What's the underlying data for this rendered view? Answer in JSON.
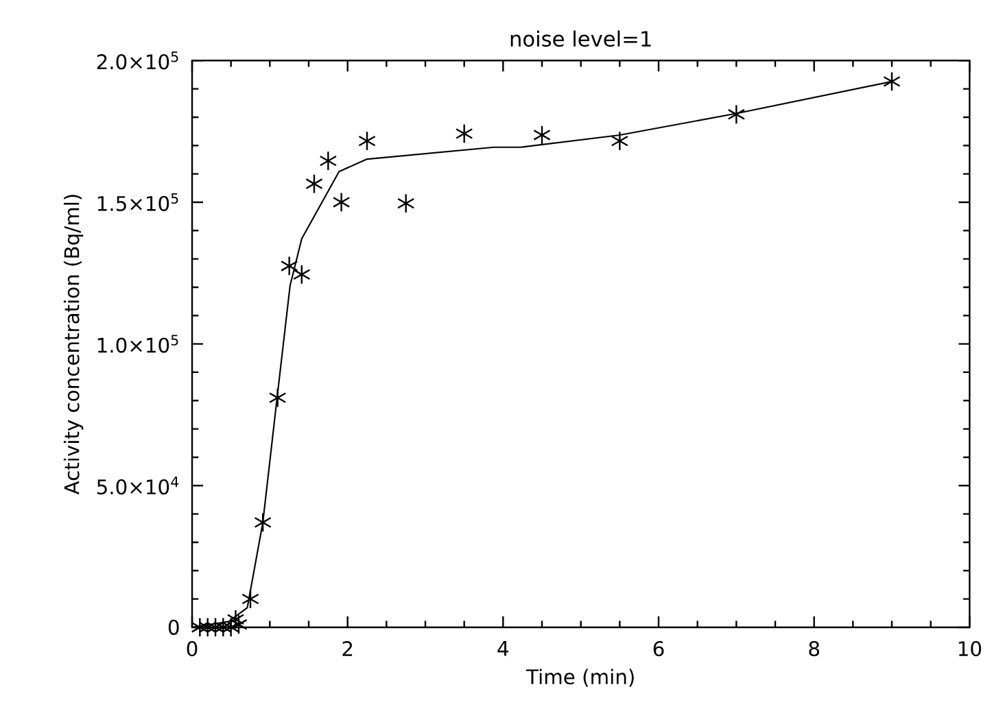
{
  "chart_data": {
    "type": "scatter",
    "title": "noise level=1",
    "xlabel": "Time (min)",
    "ylabel": "Activity concentration (Bq/ml)",
    "xlim": [
      0,
      10
    ],
    "xticks": [
      0,
      2,
      4,
      6,
      8,
      10
    ],
    "ylim": [
      0,
      200000
    ],
    "yticks": [
      {
        "value": 0,
        "label": "0"
      },
      {
        "value": 50000,
        "label": "5.0×10$^{4}$"
      },
      {
        "value": 100000,
        "label": "1.0×10$^{5}$"
      },
      {
        "value": 150000,
        "label": "1.5×10$^{5}$"
      },
      {
        "value": 200000,
        "label": "2.0×10$^{5}$"
      }
    ],
    "grid": false,
    "series": [
      {
        "marker": "cross",
        "color": "#000000",
        "x": [
          0.1,
          0.2,
          0.3,
          0.4,
          0.5,
          0.56,
          0.6,
          0.75,
          0.91,
          1.1,
          1.25,
          1.41,
          1.57,
          1.75,
          1.92,
          2.25,
          2.75,
          3.5,
          4.5,
          5.5,
          7.0,
          9.0
        ],
        "values": [
          0,
          0,
          0,
          0,
          0,
          2800,
          1000,
          10000,
          37000,
          81000,
          127500,
          124500,
          156500,
          164600,
          150000,
          171600,
          149600,
          174200,
          173700,
          171600,
          181000,
          192600
        ]
      },
      {
        "type": "line",
        "marker": "none",
        "line_style": "solid",
        "color": "#000000",
        "x": [
          0.0,
          0.47,
          0.71,
          0.91,
          1.09,
          1.26,
          1.41,
          1.89,
          2.25,
          3.88,
          4.23,
          5.5,
          7.0,
          9.0
        ],
        "values": [
          0,
          2000,
          6900,
          37000,
          80200,
          120500,
          137100,
          160800,
          165200,
          169400,
          169400,
          173700,
          181300,
          192600
        ]
      }
    ]
  }
}
